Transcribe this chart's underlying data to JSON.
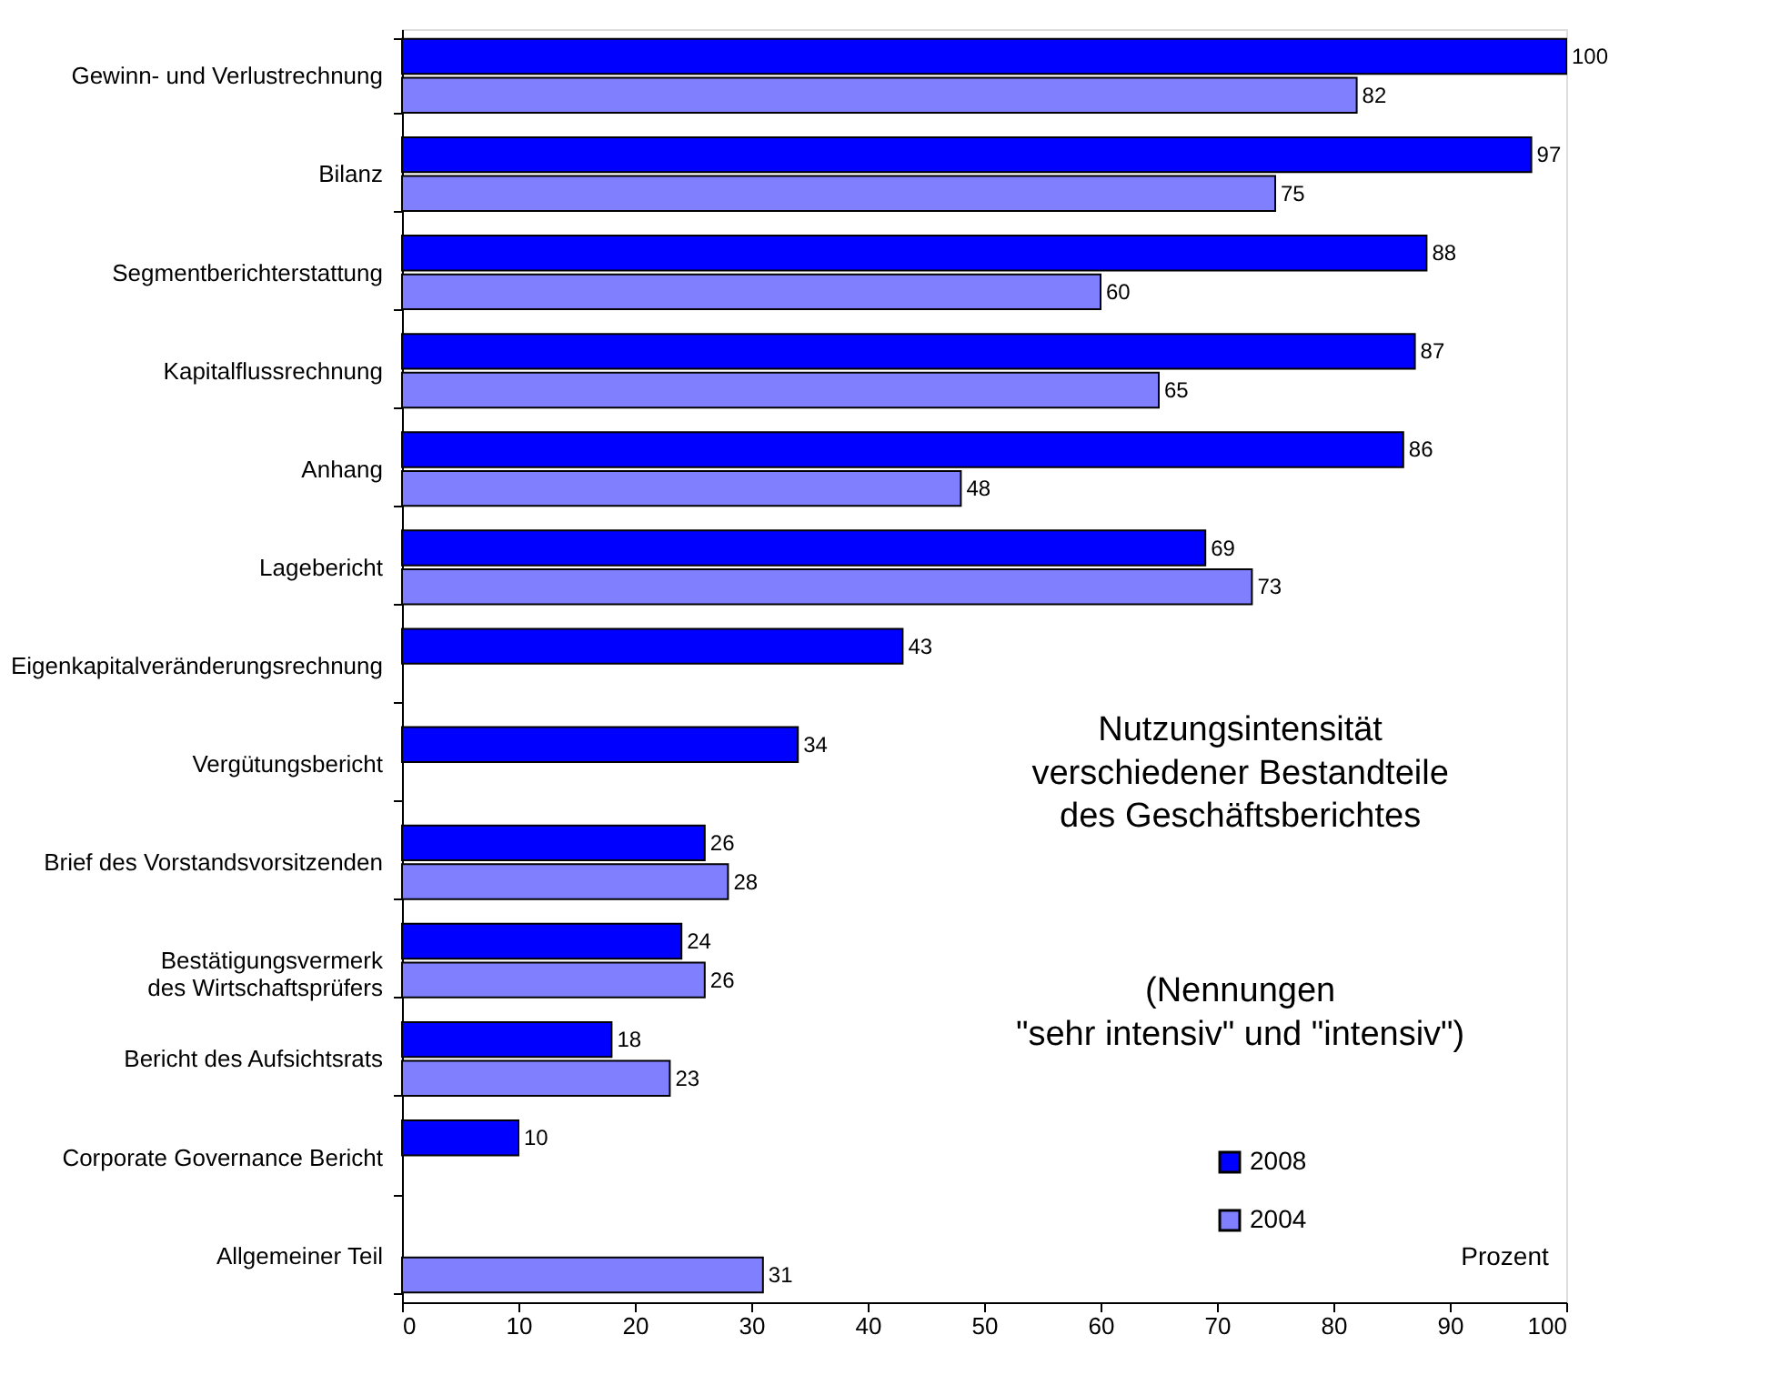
{
  "chart_data": {
    "type": "bar",
    "orientation": "horizontal",
    "categories": [
      "Gewinn- und Verlustrechnung",
      "Bilanz",
      "Segmentberichterstattung",
      "Kapitalflussrechnung",
      "Anhang",
      "Lagebericht",
      "Eigenkapitalveränderungsrechnung",
      "Vergütungsbericht",
      "Brief des Vorstandsvorsitzenden",
      "Bestätigungsvermerk des Wirtschaftsprüfers",
      "Bericht des Aufsichtsrats",
      "Corporate Governance Bericht",
      "Allgemeiner Teil"
    ],
    "series": [
      {
        "name": "2008",
        "color": "#0000ff",
        "values": [
          100,
          97,
          88,
          87,
          86,
          69,
          43,
          34,
          26,
          24,
          18,
          10,
          null
        ]
      },
      {
        "name": "2004",
        "color": "#8080ff",
        "values": [
          82,
          75,
          60,
          65,
          48,
          73,
          null,
          null,
          28,
          26,
          23,
          null,
          31
        ]
      }
    ],
    "xlim": [
      0,
      100
    ],
    "xticks": [
      0,
      10,
      20,
      30,
      40,
      50,
      60,
      70,
      80,
      90,
      100
    ],
    "data_labels": true,
    "grid": false,
    "legend": "bottom right",
    "annotations": [
      "Nutzungsintensität\nverschiedener Bestandteile\ndes Geschäftsberichtes",
      "(Nennungen\n\"sehr intensiv\" und \"intensiv\")",
      "Prozent"
    ]
  }
}
